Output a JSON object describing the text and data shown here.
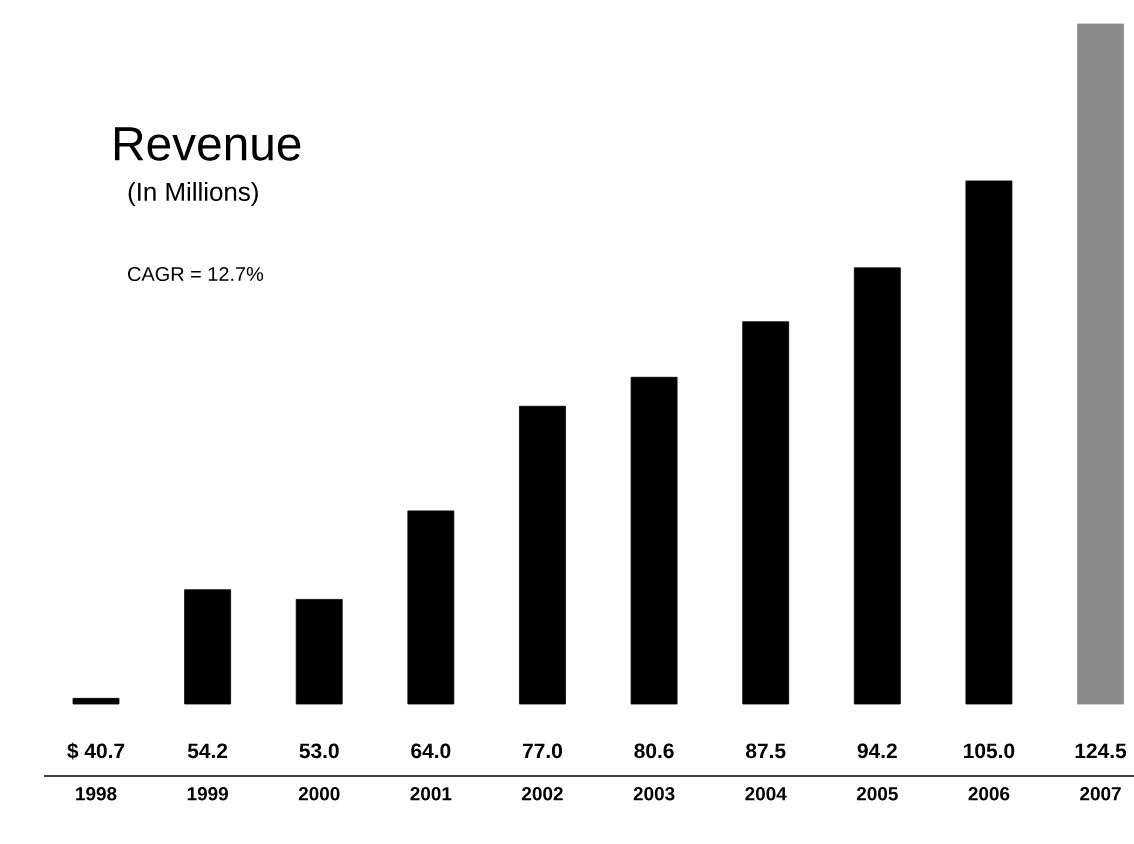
{
  "chart_data": {
    "type": "bar",
    "title": "Revenue",
    "subtitle": "(In Millions)",
    "annotations": [
      "CAGR = 12.7%"
    ],
    "categories": [
      "1998",
      "1999",
      "2000",
      "2001",
      "2002",
      "2003",
      "2004",
      "2005",
      "2006",
      "2007"
    ],
    "values": [
      40.7,
      54.2,
      53.0,
      64.0,
      77.0,
      80.6,
      87.5,
      94.2,
      105.0,
      124.5
    ],
    "value_labels": [
      "$ 40.7",
      "54.2",
      "53.0",
      "64.0",
      "77.0",
      "80.6",
      "87.5",
      "94.2",
      "105.0",
      "124.5"
    ],
    "colors": [
      "#000000",
      "#000000",
      "#000000",
      "#000000",
      "#000000",
      "#000000",
      "#000000",
      "#000000",
      "#000000",
      "#8a8a8a"
    ],
    "ylim": [
      40,
      125
    ]
  }
}
